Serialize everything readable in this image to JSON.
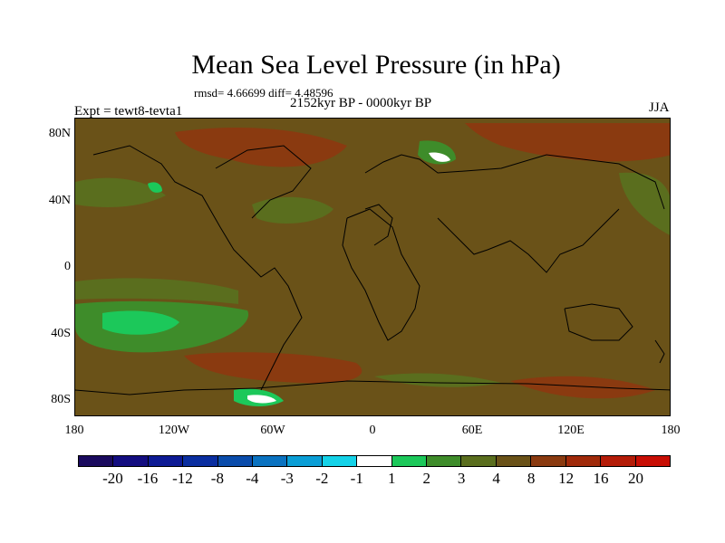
{
  "title": "Mean Sea Level Pressure (in hPa)",
  "stats": "rmsd= 4.66699 diff= 4.48596",
  "subtitle": "2152kyr BP - 0000kyr BP",
  "expt_label": "Expt = tewt8-tevta1",
  "season": "JJA",
  "lat_ticks": [
    "80N",
    "40N",
    "0",
    "40S",
    "80S"
  ],
  "lon_ticks": [
    "180",
    "120W",
    "60W",
    "0",
    "60E",
    "120E",
    "180"
  ],
  "colorbar": {
    "labels": [
      "-20",
      "-16",
      "-12",
      "-8",
      "-4",
      "-3",
      "-2",
      "-1",
      "1",
      "2",
      "3",
      "4",
      "8",
      "12",
      "16",
      "20"
    ],
    "colors": [
      "#1a0a5e",
      "#130d80",
      "#0d1a94",
      "#0a2ea0",
      "#0a4cab",
      "#0a72c0",
      "#0a9ed6",
      "#14d2e8",
      "#ffffff",
      "#1cc85a",
      "#3e8c2a",
      "#5a6e1e",
      "#6a5218",
      "#8a3a10",
      "#a02a0a",
      "#b41c08",
      "#c80e04"
    ]
  }
}
